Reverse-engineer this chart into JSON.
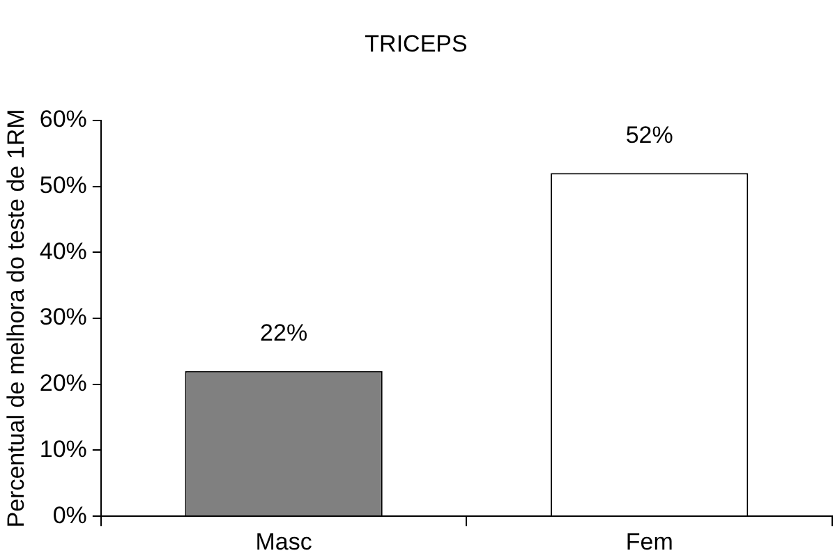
{
  "chart_data": {
    "type": "bar",
    "title": "TRICEPS",
    "ylabel": "Percentual de melhora do teste de 1RM",
    "categories": [
      "Masc",
      "Fem"
    ],
    "values": [
      22,
      52
    ],
    "colors": [
      "#808080",
      "#ffffff"
    ],
    "value_labels": [
      "22%",
      "52%"
    ],
    "ylim": [
      0,
      60
    ],
    "yticks": [
      {
        "value": 0,
        "label": "0%"
      },
      {
        "value": 10,
        "label": "10%"
      },
      {
        "value": 20,
        "label": "20%"
      },
      {
        "value": 30,
        "label": "30%"
      },
      {
        "value": 40,
        "label": "40%"
      },
      {
        "value": 50,
        "label": "50%"
      },
      {
        "value": 60,
        "label": "60%"
      }
    ],
    "grid": false,
    "legend": false
  }
}
